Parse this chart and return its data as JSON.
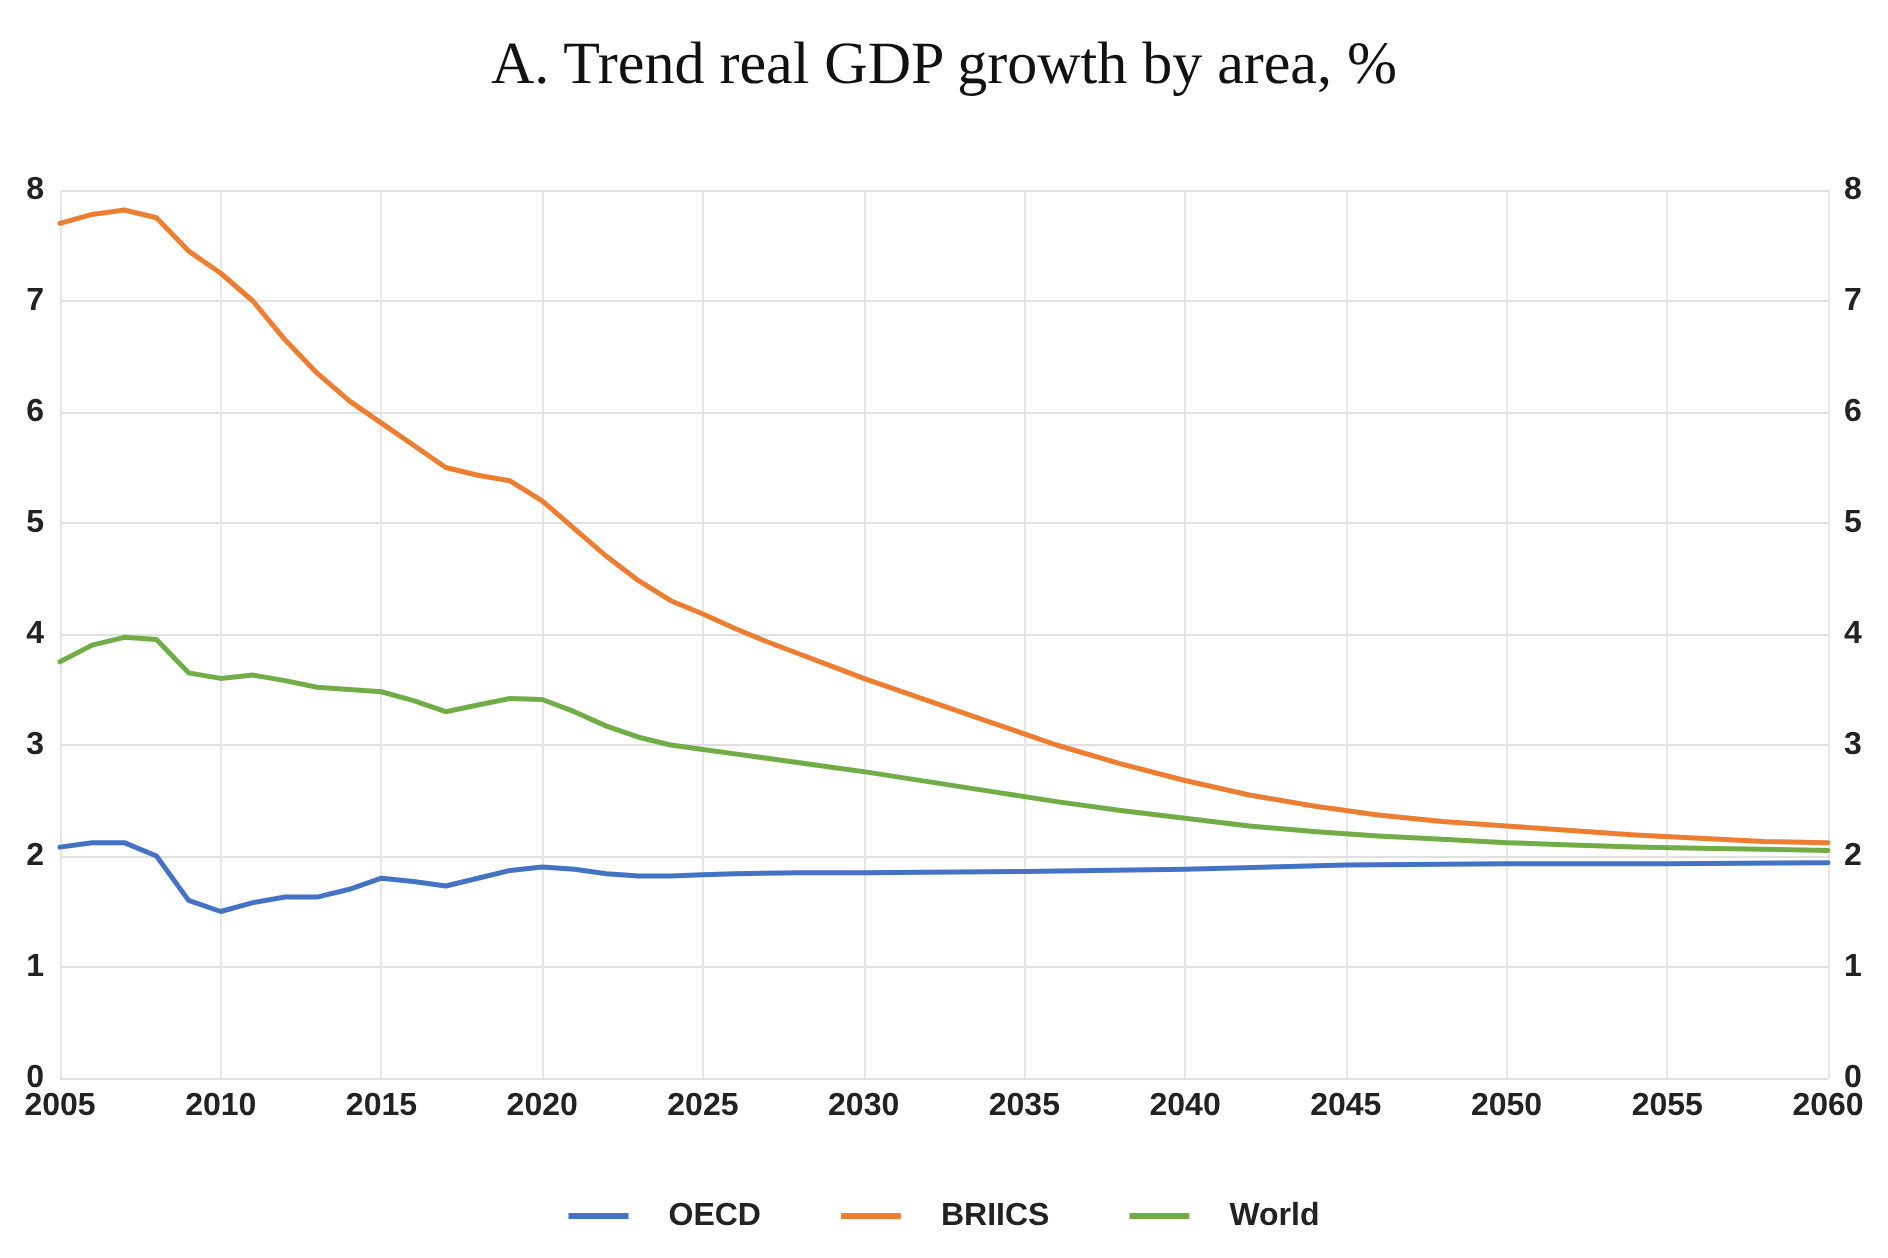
{
  "chart_data": {
    "type": "line",
    "title": "A. Trend real GDP growth by area, %",
    "xlim": [
      2005,
      2060
    ],
    "xticks": [
      2005,
      2010,
      2015,
      2020,
      2025,
      2030,
      2035,
      2040,
      2045,
      2050,
      2055,
      2060
    ],
    "ylim": [
      0,
      8
    ],
    "yticks": [
      0,
      1,
      2,
      3,
      4,
      5,
      6,
      7,
      8
    ],
    "y2lim": [
      0,
      8
    ],
    "y2ticks": [
      0,
      1,
      2,
      3,
      4,
      5,
      6,
      7,
      8
    ],
    "grid": true,
    "legend": "bottom",
    "marker": "none",
    "line_style": "solid",
    "series": [
      {
        "name": "OECD",
        "color": "#4472c4",
        "x": [
          2005,
          2006,
          2007,
          2008,
          2009,
          2010,
          2011,
          2012,
          2013,
          2014,
          2015,
          2016,
          2017,
          2018,
          2019,
          2020,
          2021,
          2022,
          2023,
          2024,
          2025,
          2026,
          2028,
          2030,
          2035,
          2040,
          2045,
          2050,
          2055,
          2060
        ],
        "values": [
          2.08,
          2.12,
          2.12,
          2.0,
          1.6,
          1.5,
          1.58,
          1.63,
          1.63,
          1.7,
          1.8,
          1.77,
          1.73,
          1.8,
          1.87,
          1.9,
          1.88,
          1.84,
          1.82,
          1.82,
          1.83,
          1.84,
          1.85,
          1.85,
          1.86,
          1.88,
          1.92,
          1.93,
          1.93,
          1.94
        ]
      },
      {
        "name": "BRIICS",
        "color": "#ed7d31",
        "x": [
          2005,
          2006,
          2007,
          2008,
          2009,
          2010,
          2011,
          2012,
          2013,
          2014,
          2015,
          2016,
          2017,
          2018,
          2019,
          2020,
          2021,
          2022,
          2023,
          2024,
          2025,
          2026,
          2027,
          2028,
          2029,
          2030,
          2032,
          2034,
          2036,
          2038,
          2040,
          2042,
          2044,
          2046,
          2048,
          2050,
          2052,
          2054,
          2056,
          2058,
          2060
        ],
        "values": [
          7.7,
          7.78,
          7.82,
          7.75,
          7.45,
          7.25,
          7.0,
          6.65,
          6.35,
          6.1,
          5.9,
          5.7,
          5.5,
          5.43,
          5.38,
          5.2,
          4.95,
          4.7,
          4.48,
          4.3,
          4.18,
          4.05,
          3.93,
          3.82,
          3.71,
          3.6,
          3.4,
          3.2,
          3.0,
          2.83,
          2.68,
          2.55,
          2.45,
          2.37,
          2.31,
          2.27,
          2.23,
          2.19,
          2.16,
          2.13,
          2.12
        ]
      },
      {
        "name": "World",
        "color": "#70ad47",
        "x": [
          2005,
          2006,
          2007,
          2008,
          2009,
          2010,
          2011,
          2012,
          2013,
          2014,
          2015,
          2016,
          2017,
          2018,
          2019,
          2020,
          2021,
          2022,
          2023,
          2024,
          2025,
          2026,
          2027,
          2028,
          2029,
          2030,
          2032,
          2034,
          2036,
          2038,
          2040,
          2042,
          2044,
          2046,
          2048,
          2050,
          2052,
          2054,
          2056,
          2058,
          2060
        ],
        "values": [
          3.75,
          3.9,
          3.97,
          3.95,
          3.65,
          3.6,
          3.63,
          3.58,
          3.52,
          3.5,
          3.48,
          3.4,
          3.3,
          3.36,
          3.42,
          3.41,
          3.3,
          3.17,
          3.07,
          3.0,
          2.96,
          2.92,
          2.88,
          2.84,
          2.8,
          2.76,
          2.67,
          2.58,
          2.49,
          2.41,
          2.34,
          2.27,
          2.22,
          2.18,
          2.15,
          2.12,
          2.1,
          2.08,
          2.07,
          2.06,
          2.05
        ]
      }
    ]
  }
}
